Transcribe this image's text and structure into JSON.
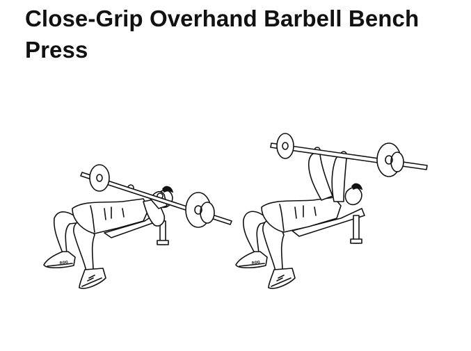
{
  "page": {
    "title": "Close-Grip Overhand Barbell Bench Press"
  },
  "illustration": {
    "frames": [
      {
        "name": "bar-lowered-to-chest",
        "shoe_logo": "ROG"
      },
      {
        "name": "bar-pressed-overhead",
        "shoe_logo": "ROG"
      }
    ],
    "colors": {
      "ink": "#111111",
      "background": "#ffffff"
    }
  }
}
